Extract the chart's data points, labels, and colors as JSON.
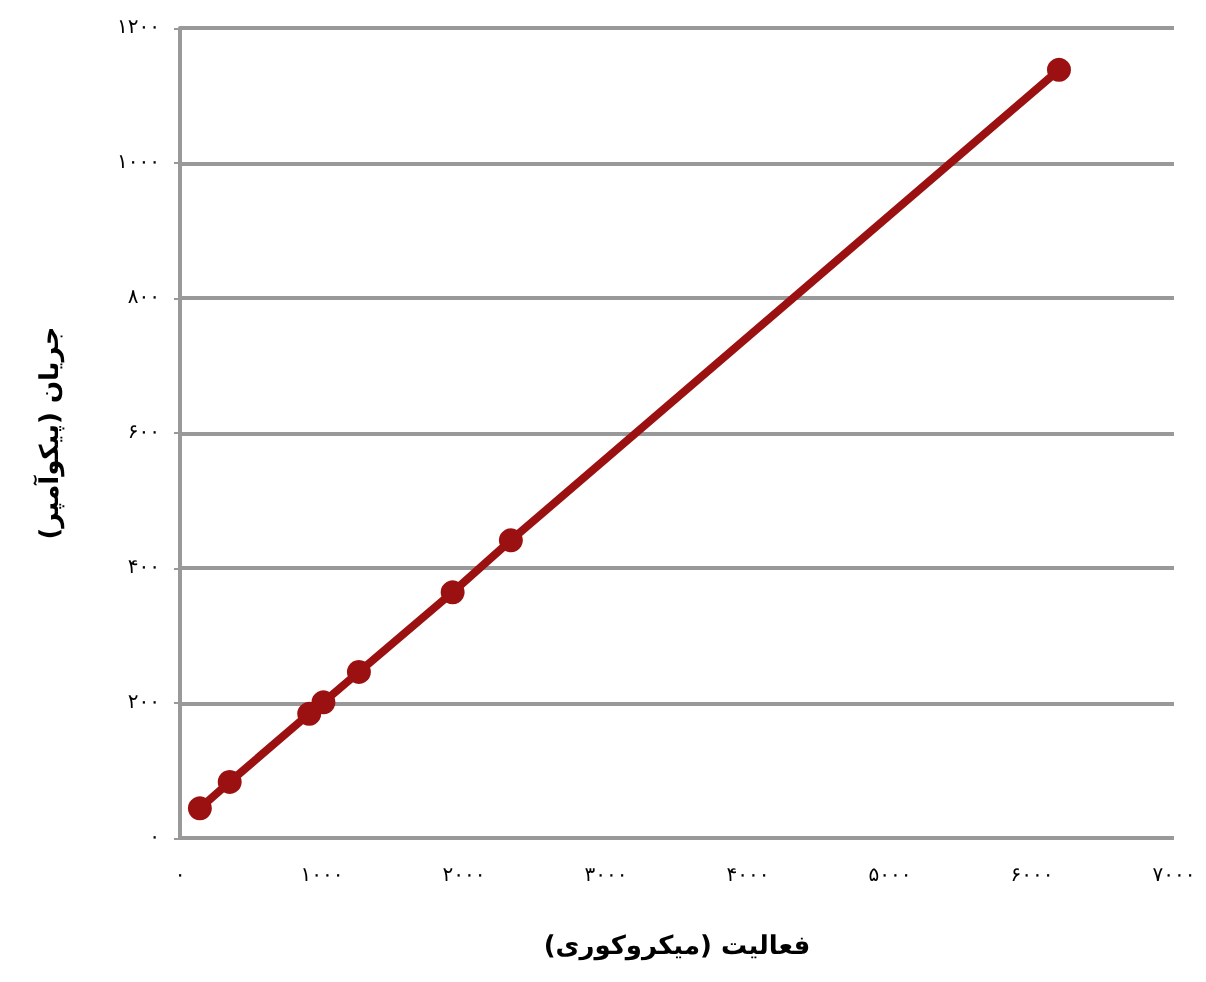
{
  "chart_data": {
    "type": "line",
    "xlabel": "فعالیت (میکروکوری)",
    "ylabel": "جریان (پیکوآمپر)",
    "x": [
      140,
      350,
      910,
      1010,
      1260,
      1920,
      2330,
      6190
    ],
    "series": [
      {
        "color": "#9b1111",
        "values": [
          44,
          83,
          184,
          201,
          246,
          364,
          441,
          1138
        ]
      }
    ],
    "xlim": [
      0,
      7000
    ],
    "xticks": [
      {
        "value": 0,
        "label": "۰"
      },
      {
        "value": 1000,
        "label": "۱۰۰۰"
      },
      {
        "value": 2000,
        "label": "۲۰۰۰"
      },
      {
        "value": 3000,
        "label": "۳۰۰۰"
      },
      {
        "value": 4000,
        "label": "۴۰۰۰"
      },
      {
        "value": 5000,
        "label": "۵۰۰۰"
      },
      {
        "value": 6000,
        "label": "۶۰۰۰"
      },
      {
        "value": 7000,
        "label": "۷۰۰۰"
      }
    ],
    "ylim": [
      0,
      1200
    ],
    "yticks": [
      {
        "value": 0,
        "label": "۰"
      },
      {
        "value": 200,
        "label": "۲۰۰"
      },
      {
        "value": 400,
        "label": "۴۰۰"
      },
      {
        "value": 600,
        "label": "۶۰۰"
      },
      {
        "value": 800,
        "label": "۸۰۰"
      },
      {
        "value": 1000,
        "label": "۱۰۰۰"
      },
      {
        "value": 1200,
        "label": "۱۲۰۰"
      }
    ],
    "grid": "y",
    "marker": "circle",
    "line_style": "solid"
  }
}
